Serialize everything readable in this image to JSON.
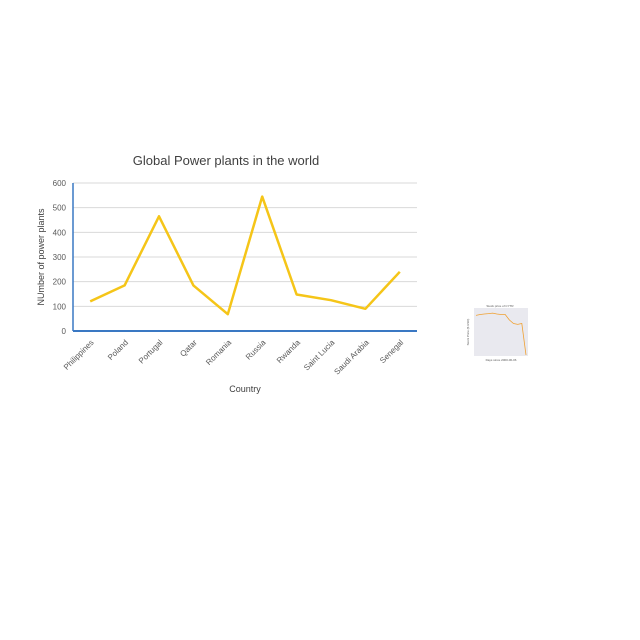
{
  "chart_data": [
    {
      "type": "line",
      "title": "Global Power plants in the world",
      "xlabel": "Country",
      "ylabel": "NUmber of power plants",
      "categories": [
        "Philippines",
        "Poland",
        "Portugal",
        "Qatar",
        "Romania",
        "Russia",
        "Rwanda",
        "Saint Lucia",
        "Saudi Arabia",
        "Senegal"
      ],
      "series": [
        {
          "values": [
            120,
            185,
            465,
            185,
            68,
            545,
            148,
            125,
            90,
            240
          ]
        }
      ],
      "ylim": [
        0,
        600
      ],
      "yticks": [
        0,
        100,
        200,
        300,
        400,
        500,
        600
      ],
      "grid": true,
      "line_color": "#F5C518",
      "axis_color": "#3A78C3"
    },
    {
      "type": "line",
      "title": "Stock price of CYTR",
      "xlabel": "Days since 2000-06-06",
      "ylabel": "Stock Price ($ USD)",
      "series": [
        {
          "values": [
            0.88,
            0.9,
            0.91,
            0.92,
            0.93,
            0.91,
            0.9,
            0.9,
            0.78,
            0.7,
            0.68,
            0.7,
            0.0
          ]
        }
      ],
      "ylim": [
        0,
        1
      ],
      "line_color": "#F0A030"
    }
  ]
}
